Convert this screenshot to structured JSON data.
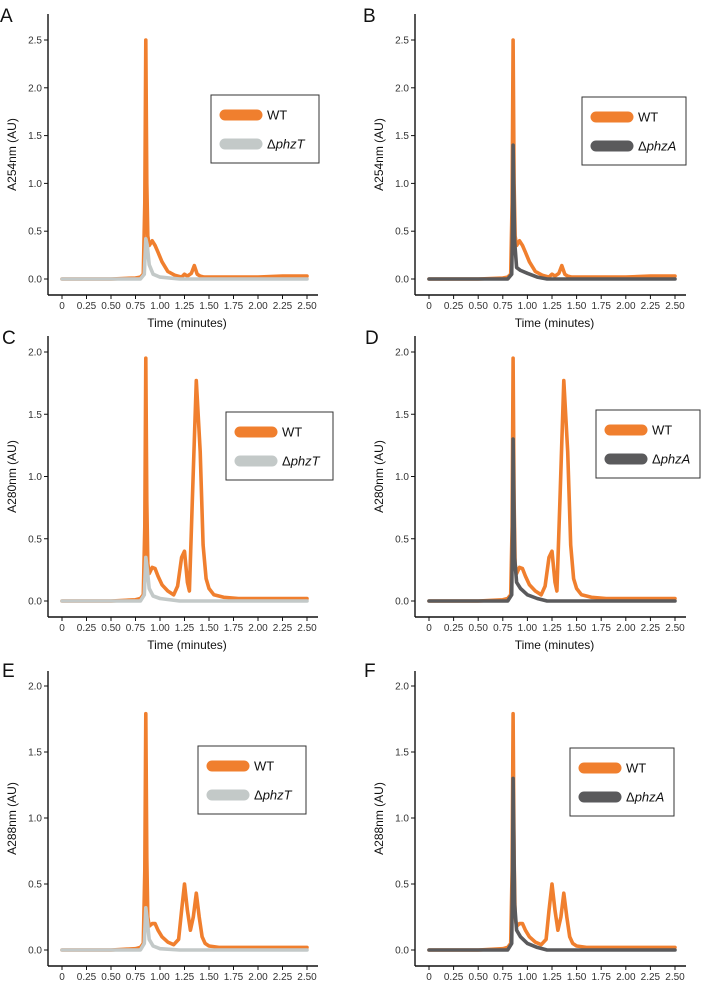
{
  "figure": {
    "background": "#ffffff"
  },
  "chart_data": [
    {
      "panel": "A",
      "type": "line",
      "xlabel": "Time (minutes)",
      "ylabel": "A254nm (AU)",
      "xlim": [
        0,
        2.5
      ],
      "ylim": [
        0,
        2.5
      ],
      "xticks": [
        "0",
        "0.25",
        "0.50",
        "0.75",
        "1.00",
        "1.25",
        "1.50",
        "1.75",
        "2.00",
        "2.25",
        "2.50"
      ],
      "yticks": [
        "0.0",
        "0.5",
        "1.0",
        "1.5",
        "2.0",
        "2.5"
      ],
      "legend_position": "right",
      "series": [
        {
          "name": "WT",
          "prefix": "",
          "mutant": "",
          "color": "#f07f2e",
          "x": [
            0,
            0.5,
            0.75,
            0.8,
            0.83,
            0.845,
            0.855,
            0.865,
            0.875,
            0.89,
            0.92,
            0.95,
            0.98,
            1.02,
            1.08,
            1.15,
            1.22,
            1.25,
            1.28,
            1.32,
            1.35,
            1.38,
            1.41,
            1.45,
            1.5,
            1.6,
            1.75,
            2.0,
            2.25,
            2.5
          ],
          "values": [
            0.0,
            0.0,
            0.01,
            0.02,
            0.05,
            0.8,
            2.5,
            1.0,
            0.45,
            0.35,
            0.4,
            0.35,
            0.28,
            0.18,
            0.08,
            0.04,
            0.02,
            0.05,
            0.03,
            0.06,
            0.14,
            0.05,
            0.03,
            0.02,
            0.02,
            0.02,
            0.02,
            0.02,
            0.03,
            0.03
          ]
        },
        {
          "name": "ΔphzT",
          "prefix": "Δ",
          "mutant": "phzT",
          "color": "#c3c9c8",
          "x": [
            0,
            0.5,
            0.8,
            0.84,
            0.855,
            0.87,
            0.89,
            0.93,
            1.0,
            1.2,
            2.5
          ],
          "values": [
            0.0,
            0.0,
            0.0,
            0.05,
            0.42,
            0.35,
            0.15,
            0.05,
            0.02,
            0.0,
            0.0
          ]
        }
      ]
    },
    {
      "panel": "B",
      "type": "line",
      "xlabel": "Time (minutes)",
      "ylabel": "A254nm (AU)",
      "xlim": [
        0,
        2.5
      ],
      "ylim": [
        0,
        2.5
      ],
      "xticks": [
        "0",
        "0.25",
        "0.50",
        "0.75",
        "1.00",
        "1.25",
        "1.50",
        "1.75",
        "2.00",
        "2.25",
        "2.50"
      ],
      "yticks": [
        "0.0",
        "0.5",
        "1.0",
        "1.5",
        "2.0",
        "2.5"
      ],
      "legend_position": "right",
      "series": [
        {
          "name": "WT",
          "prefix": "",
          "mutant": "",
          "color": "#f07f2e",
          "x": [
            0,
            0.5,
            0.75,
            0.8,
            0.83,
            0.845,
            0.855,
            0.865,
            0.875,
            0.89,
            0.92,
            0.95,
            0.98,
            1.02,
            1.08,
            1.15,
            1.22,
            1.25,
            1.28,
            1.32,
            1.35,
            1.38,
            1.41,
            1.45,
            1.5,
            1.6,
            1.75,
            2.0,
            2.25,
            2.5
          ],
          "values": [
            0.0,
            0.0,
            0.01,
            0.02,
            0.05,
            0.8,
            2.5,
            1.0,
            0.45,
            0.35,
            0.4,
            0.35,
            0.28,
            0.18,
            0.08,
            0.04,
            0.02,
            0.05,
            0.03,
            0.06,
            0.14,
            0.05,
            0.03,
            0.02,
            0.02,
            0.02,
            0.02,
            0.02,
            0.03,
            0.03
          ]
        },
        {
          "name": "ΔphzA",
          "prefix": "Δ",
          "mutant": "phzA",
          "color": "#5a5a5c",
          "x": [
            0,
            0.5,
            0.8,
            0.84,
            0.85,
            0.855,
            0.87,
            0.89,
            0.93,
            1.0,
            1.1,
            1.2,
            1.4,
            2.5
          ],
          "values": [
            0.0,
            0.0,
            0.0,
            0.05,
            0.6,
            1.4,
            0.4,
            0.12,
            0.09,
            0.06,
            0.02,
            0.0,
            0.0,
            0.0
          ]
        }
      ]
    },
    {
      "panel": "C",
      "type": "line",
      "xlabel": "Time (minutes)",
      "ylabel": "A280nm (AU)",
      "xlim": [
        0,
        2.5
      ],
      "ylim": [
        0,
        2.0
      ],
      "xticks": [
        "0",
        "0.25",
        "0.50",
        "0.75",
        "1.00",
        "1.25",
        "1.50",
        "1.75",
        "2.00",
        "2.25",
        "2.50"
      ],
      "yticks": [
        "0.0",
        "0.5",
        "1.0",
        "1.5",
        "2.0"
      ],
      "legend_position": "right",
      "series": [
        {
          "name": "WT",
          "prefix": "",
          "mutant": "",
          "color": "#f07f2e",
          "x": [
            0,
            0.5,
            0.75,
            0.8,
            0.83,
            0.845,
            0.855,
            0.865,
            0.875,
            0.89,
            0.92,
            0.95,
            0.98,
            1.02,
            1.08,
            1.14,
            1.18,
            1.22,
            1.25,
            1.28,
            1.3,
            1.33,
            1.37,
            1.41,
            1.44,
            1.47,
            1.5,
            1.55,
            1.65,
            1.8,
            2.0,
            2.25,
            2.5
          ],
          "values": [
            0.0,
            0.0,
            0.01,
            0.02,
            0.05,
            0.6,
            1.95,
            0.8,
            0.3,
            0.22,
            0.27,
            0.26,
            0.2,
            0.13,
            0.08,
            0.05,
            0.12,
            0.35,
            0.4,
            0.15,
            0.08,
            0.8,
            1.77,
            1.2,
            0.45,
            0.18,
            0.1,
            0.05,
            0.03,
            0.02,
            0.02,
            0.02,
            0.02
          ]
        },
        {
          "name": "ΔphzT",
          "prefix": "Δ",
          "mutant": "phzT",
          "color": "#c3c9c8",
          "x": [
            0,
            0.5,
            0.8,
            0.84,
            0.855,
            0.87,
            0.89,
            0.93,
            1.0,
            1.2,
            2.5
          ],
          "values": [
            0.0,
            0.0,
            0.0,
            0.05,
            0.35,
            0.25,
            0.1,
            0.04,
            0.02,
            0.0,
            0.0
          ]
        }
      ]
    },
    {
      "panel": "D",
      "type": "line",
      "xlabel": "Time (minutes)",
      "ylabel": "A280nm (AU)",
      "xlim": [
        0,
        2.5
      ],
      "ylim": [
        0,
        2.0
      ],
      "xticks": [
        "0",
        "0.25",
        "0.50",
        "0.75",
        "1.00",
        "1.25",
        "1.50",
        "1.75",
        "2.00",
        "2.25",
        "2.50"
      ],
      "yticks": [
        "0.0",
        "0.5",
        "1.0",
        "1.5",
        "2.0"
      ],
      "legend_position": "right",
      "series": [
        {
          "name": "WT",
          "prefix": "",
          "mutant": "",
          "color": "#f07f2e",
          "x": [
            0,
            0.5,
            0.75,
            0.8,
            0.83,
            0.845,
            0.855,
            0.865,
            0.875,
            0.89,
            0.92,
            0.95,
            0.98,
            1.02,
            1.08,
            1.14,
            1.18,
            1.22,
            1.25,
            1.28,
            1.3,
            1.33,
            1.37,
            1.41,
            1.44,
            1.47,
            1.5,
            1.55,
            1.65,
            1.8,
            2.0,
            2.25,
            2.5
          ],
          "values": [
            0.0,
            0.0,
            0.01,
            0.02,
            0.05,
            0.6,
            1.95,
            0.8,
            0.3,
            0.22,
            0.27,
            0.26,
            0.2,
            0.13,
            0.08,
            0.05,
            0.12,
            0.35,
            0.4,
            0.15,
            0.08,
            0.8,
            1.77,
            1.2,
            0.45,
            0.18,
            0.1,
            0.05,
            0.03,
            0.02,
            0.02,
            0.02,
            0.02
          ]
        },
        {
          "name": "ΔphzA",
          "prefix": "Δ",
          "mutant": "phzA",
          "color": "#5a5a5c",
          "x": [
            0,
            0.5,
            0.8,
            0.84,
            0.85,
            0.855,
            0.87,
            0.89,
            0.93,
            1.0,
            1.1,
            1.2,
            1.4,
            2.5
          ],
          "values": [
            0.0,
            0.0,
            0.0,
            0.05,
            0.6,
            1.3,
            0.35,
            0.15,
            0.1,
            0.05,
            0.02,
            0.0,
            0.0,
            0.0
          ]
        }
      ]
    },
    {
      "panel": "E",
      "type": "line",
      "xlabel": "Time (minutes)",
      "ylabel": "A288nm (AU)",
      "xlim": [
        0,
        2.5
      ],
      "ylim": [
        0,
        2.0
      ],
      "xticks": [
        "0",
        "0.25",
        "0.50",
        "0.75",
        "1.00",
        "1.25",
        "1.50",
        "1.75",
        "2.00",
        "2.25",
        "2.50"
      ],
      "yticks": [
        "0.0",
        "0.5",
        "1.0",
        "1.5",
        "2.0"
      ],
      "legend_position": "right",
      "series": [
        {
          "name": "WT",
          "prefix": "",
          "mutant": "",
          "color": "#f07f2e",
          "x": [
            0,
            0.5,
            0.75,
            0.8,
            0.83,
            0.845,
            0.855,
            0.865,
            0.875,
            0.89,
            0.92,
            0.95,
            0.98,
            1.02,
            1.08,
            1.14,
            1.19,
            1.22,
            1.25,
            1.28,
            1.31,
            1.34,
            1.37,
            1.4,
            1.43,
            1.46,
            1.5,
            1.6,
            1.75,
            2.0,
            2.25,
            2.5
          ],
          "values": [
            0.0,
            0.0,
            0.01,
            0.02,
            0.05,
            0.6,
            1.79,
            0.7,
            0.25,
            0.18,
            0.2,
            0.2,
            0.15,
            0.1,
            0.06,
            0.04,
            0.08,
            0.3,
            0.5,
            0.3,
            0.15,
            0.25,
            0.43,
            0.25,
            0.1,
            0.05,
            0.03,
            0.02,
            0.02,
            0.02,
            0.02,
            0.02
          ]
        },
        {
          "name": "ΔphzT",
          "prefix": "Δ",
          "mutant": "phzT",
          "color": "#c3c9c8",
          "x": [
            0,
            0.5,
            0.8,
            0.84,
            0.855,
            0.87,
            0.89,
            0.93,
            1.0,
            1.2,
            2.5
          ],
          "values": [
            0.0,
            0.0,
            0.0,
            0.05,
            0.32,
            0.22,
            0.08,
            0.03,
            0.01,
            0.0,
            0.0
          ]
        }
      ]
    },
    {
      "panel": "F",
      "type": "line",
      "xlabel": "Time (minutes)",
      "ylabel": "A288nm (AU)",
      "xlim": [
        0,
        2.5
      ],
      "ylim": [
        0,
        2.0
      ],
      "xticks": [
        "0",
        "0.25",
        "0.50",
        "0.75",
        "1.00",
        "1.25",
        "1.50",
        "1.75",
        "2.00",
        "2.25",
        "2.50"
      ],
      "yticks": [
        "0.0",
        "0.5",
        "1.0",
        "1.5",
        "2.0"
      ],
      "legend_position": "right",
      "series": [
        {
          "name": "WT",
          "prefix": "",
          "mutant": "",
          "color": "#f07f2e",
          "x": [
            0,
            0.5,
            0.75,
            0.8,
            0.83,
            0.845,
            0.855,
            0.865,
            0.875,
            0.89,
            0.92,
            0.95,
            0.98,
            1.02,
            1.08,
            1.14,
            1.19,
            1.22,
            1.25,
            1.28,
            1.31,
            1.34,
            1.37,
            1.4,
            1.43,
            1.46,
            1.5,
            1.6,
            1.75,
            2.0,
            2.25,
            2.5
          ],
          "values": [
            0.0,
            0.0,
            0.01,
            0.02,
            0.05,
            0.6,
            1.79,
            0.7,
            0.25,
            0.18,
            0.2,
            0.2,
            0.15,
            0.1,
            0.06,
            0.04,
            0.08,
            0.3,
            0.5,
            0.3,
            0.15,
            0.25,
            0.43,
            0.25,
            0.1,
            0.05,
            0.03,
            0.02,
            0.02,
            0.02,
            0.02,
            0.02
          ]
        },
        {
          "name": "ΔphzA",
          "prefix": "Δ",
          "mutant": "phzA",
          "color": "#5a5a5c",
          "x": [
            0,
            0.5,
            0.8,
            0.84,
            0.85,
            0.855,
            0.87,
            0.89,
            0.93,
            1.0,
            1.1,
            1.2,
            1.4,
            2.5
          ],
          "values": [
            0.0,
            0.0,
            0.0,
            0.05,
            0.6,
            1.3,
            0.35,
            0.15,
            0.1,
            0.05,
            0.02,
            0.0,
            0.0,
            0.0
          ]
        }
      ]
    }
  ]
}
